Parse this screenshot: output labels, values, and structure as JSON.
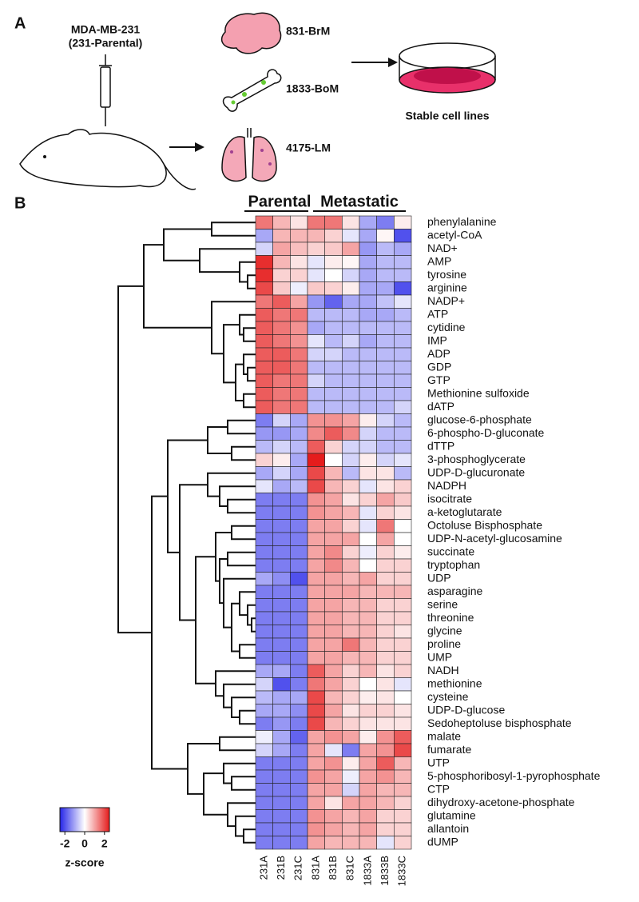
{
  "panel_a": {
    "label": "A",
    "cell_line": "MDA-MB-231",
    "parental": "(231-Parental)",
    "brain": "831-BrM",
    "bone": "1833-BoM",
    "lung": "4175-LM",
    "result": "Stable cell lines"
  },
  "panel_b": {
    "label": "B"
  },
  "chart_data": {
    "type": "heatmap",
    "groups": [
      "Parental",
      "Metastatic"
    ],
    "columns": [
      "231A",
      "231B",
      "231C",
      "831A",
      "831B",
      "831C",
      "1833A",
      "1833B",
      "1833C"
    ],
    "rows": [
      "phenylalanine",
      "acetyl-CoA",
      "NAD+",
      "AMP",
      "tyrosine",
      "arginine",
      "NADP+",
      "ATP",
      "cytidine",
      "IMP",
      "ADP",
      "GDP",
      "GTP",
      "Methionine sulfoxide",
      "dATP",
      "glucose-6-phosphate",
      "6-phospho-D-gluconate",
      "dTTP",
      "3-phosphoglycerate",
      "UDP-D-glucuronate",
      "NADPH",
      "isocitrate",
      "a-ketoglutarate",
      "Octoluse Bisphosphate",
      "UDP-N-acetyl-glucosamine",
      "succinate",
      "tryptophan",
      "UDP",
      "asparagine",
      "serine",
      "threonine",
      "glycine",
      "proline",
      "UMP",
      "NADH",
      "methionine",
      "cysteine",
      "UDP-D-glucose",
      "Sedoheptoluse bisphosphate",
      "malate",
      "fumarate",
      "UTP",
      "5-phosphoribosyl-1-pyrophosphate",
      "CTP",
      "dihydroxy-acetone-phosphate",
      "glutamine",
      "allantoin",
      "dUMP"
    ],
    "values": [
      [
        1.5,
        0.8,
        0.3,
        1.5,
        1.5,
        0.3,
        -1.0,
        -1.5,
        0.2
      ],
      [
        -1.0,
        0.8,
        0.8,
        0.8,
        0.5,
        -0.3,
        -1.0,
        0.1,
        -2.0
      ],
      [
        -0.5,
        1.0,
        0.7,
        0.5,
        0.6,
        1.0,
        -1.2,
        -0.8,
        -1.0
      ],
      [
        2.3,
        0.8,
        0.3,
        -0.3,
        0.2,
        0.1,
        -1.0,
        -0.8,
        -0.8
      ],
      [
        2.3,
        0.5,
        0.5,
        -0.3,
        0.0,
        -0.5,
        -1.0,
        -0.8,
        -0.8
      ],
      [
        2.0,
        0.6,
        -0.2,
        0.6,
        0.5,
        0.2,
        -1.0,
        -1.0,
        -2.0
      ],
      [
        1.5,
        1.8,
        1.0,
        -1.2,
        -1.8,
        -1.0,
        -1.0,
        -0.7,
        -0.3
      ],
      [
        1.8,
        1.5,
        1.5,
        -0.8,
        -0.8,
        -0.8,
        -1.0,
        -1.0,
        -0.8
      ],
      [
        1.8,
        1.5,
        1.2,
        -1.0,
        -0.8,
        -0.8,
        -0.8,
        -0.8,
        -0.8
      ],
      [
        1.8,
        1.5,
        1.2,
        -0.3,
        -0.8,
        -0.5,
        -1.0,
        -0.8,
        -0.8
      ],
      [
        1.8,
        1.8,
        1.5,
        -0.5,
        -0.5,
        -0.8,
        -0.8,
        -0.8,
        -0.8
      ],
      [
        1.8,
        1.8,
        1.5,
        -0.8,
        -0.8,
        -0.8,
        -0.8,
        -0.8,
        -0.8
      ],
      [
        1.8,
        1.5,
        1.5,
        -0.5,
        -0.8,
        -0.8,
        -0.8,
        -0.8,
        -0.8
      ],
      [
        1.8,
        1.5,
        1.5,
        -0.8,
        -0.8,
        -0.8,
        -0.8,
        -0.8,
        -0.8
      ],
      [
        1.8,
        1.5,
        1.5,
        -0.8,
        -0.8,
        -0.8,
        -0.8,
        -0.8,
        -0.5
      ],
      [
        -1.5,
        -0.5,
        -1.0,
        1.2,
        1.2,
        1.0,
        0.2,
        -0.5,
        -0.8
      ],
      [
        -1.2,
        -1.2,
        -1.0,
        1.3,
        1.8,
        1.3,
        -0.5,
        -0.8,
        -0.8
      ],
      [
        -0.8,
        -0.5,
        -0.8,
        1.8,
        0.5,
        -0.5,
        -0.5,
        -0.8,
        -0.8
      ],
      [
        0.5,
        0.2,
        -1.0,
        2.5,
        0.0,
        -0.5,
        0.2,
        -0.5,
        -0.3
      ],
      [
        -1.0,
        -0.5,
        -1.0,
        2.0,
        0.8,
        -0.8,
        0.3,
        0.3,
        -0.8
      ],
      [
        -0.3,
        -1.0,
        -0.8,
        2.0,
        0.8,
        0.5,
        -0.3,
        0.3,
        0.5
      ],
      [
        -1.5,
        -1.5,
        -1.5,
        1.2,
        1.0,
        0.3,
        0.5,
        1.0,
        0.6
      ],
      [
        -1.5,
        -1.5,
        -1.5,
        1.2,
        1.0,
        0.8,
        -0.3,
        0.5,
        0.3
      ],
      [
        -1.5,
        -1.5,
        -1.5,
        1.0,
        1.0,
        0.5,
        -0.3,
        1.5,
        0.0
      ],
      [
        -1.5,
        -1.5,
        -1.5,
        1.0,
        1.0,
        1.0,
        0.0,
        1.0,
        0.0
      ],
      [
        -1.5,
        -1.5,
        -1.5,
        1.0,
        1.3,
        0.5,
        -0.2,
        0.5,
        0.2
      ],
      [
        -1.5,
        -1.5,
        -1.5,
        1.0,
        1.3,
        0.8,
        0.0,
        0.5,
        0.5
      ],
      [
        -1.0,
        -1.3,
        -2.0,
        1.0,
        1.0,
        0.8,
        1.0,
        0.5,
        0.5
      ],
      [
        -1.5,
        -1.5,
        -1.5,
        1.0,
        1.0,
        1.0,
        0.8,
        0.8,
        0.8
      ],
      [
        -1.5,
        -1.5,
        -1.5,
        1.0,
        1.0,
        0.8,
        0.8,
        0.5,
        0.5
      ],
      [
        -1.5,
        -1.5,
        -1.5,
        1.0,
        1.0,
        0.8,
        0.8,
        0.5,
        0.5
      ],
      [
        -1.5,
        -1.5,
        -1.5,
        1.0,
        1.0,
        0.8,
        0.8,
        0.5,
        0.3
      ],
      [
        -1.5,
        -1.5,
        -1.5,
        1.0,
        1.0,
        1.5,
        0.8,
        0.5,
        0.5
      ],
      [
        -1.5,
        -1.5,
        -1.5,
        1.0,
        1.0,
        0.8,
        0.8,
        0.5,
        0.5
      ],
      [
        -1.0,
        -1.0,
        -1.5,
        1.8,
        1.0,
        0.5,
        0.8,
        0.3,
        0.5
      ],
      [
        -0.5,
        -2.0,
        -1.5,
        1.5,
        1.0,
        0.5,
        0.0,
        0.3,
        -0.3
      ],
      [
        -0.8,
        -1.0,
        -1.0,
        2.0,
        0.8,
        0.5,
        0.2,
        0.3,
        0.0
      ],
      [
        -1.0,
        -1.0,
        -1.3,
        2.0,
        1.0,
        0.3,
        0.5,
        0.5,
        0.3
      ],
      [
        -1.5,
        -1.2,
        -1.5,
        2.0,
        0.8,
        0.5,
        0.3,
        0.3,
        0.3
      ],
      [
        -0.2,
        -1.0,
        -1.8,
        1.0,
        1.2,
        1.0,
        0.2,
        1.2,
        1.8
      ],
      [
        -0.5,
        -1.0,
        -1.5,
        1.0,
        -0.3,
        -1.5,
        1.0,
        1.2,
        2.0
      ],
      [
        -1.5,
        -1.5,
        -1.5,
        1.0,
        1.2,
        0.2,
        1.0,
        1.8,
        0.8
      ],
      [
        -1.5,
        -1.5,
        -1.5,
        1.2,
        1.0,
        -0.2,
        1.0,
        1.2,
        0.8
      ],
      [
        -1.5,
        -1.5,
        -1.5,
        1.0,
        1.0,
        -0.5,
        1.0,
        0.8,
        0.8
      ],
      [
        -1.5,
        -1.5,
        -1.5,
        1.0,
        0.3,
        1.0,
        1.0,
        0.8,
        0.5
      ],
      [
        -1.5,
        -1.5,
        -1.5,
        1.2,
        1.0,
        0.8,
        1.0,
        0.5,
        0.5
      ],
      [
        -1.5,
        -1.5,
        -1.5,
        1.2,
        1.0,
        0.8,
        1.0,
        0.5,
        0.5
      ],
      [
        -1.5,
        -1.5,
        -1.5,
        1.0,
        0.8,
        0.8,
        0.8,
        -0.3,
        0.5
      ]
    ],
    "zlim": [
      -2.5,
      2.5
    ],
    "zticks": [
      -2,
      0,
      2
    ],
    "zlabel": "z-score",
    "colors": [
      "#2626e8",
      "#ffffff",
      "#e51c1c"
    ]
  }
}
